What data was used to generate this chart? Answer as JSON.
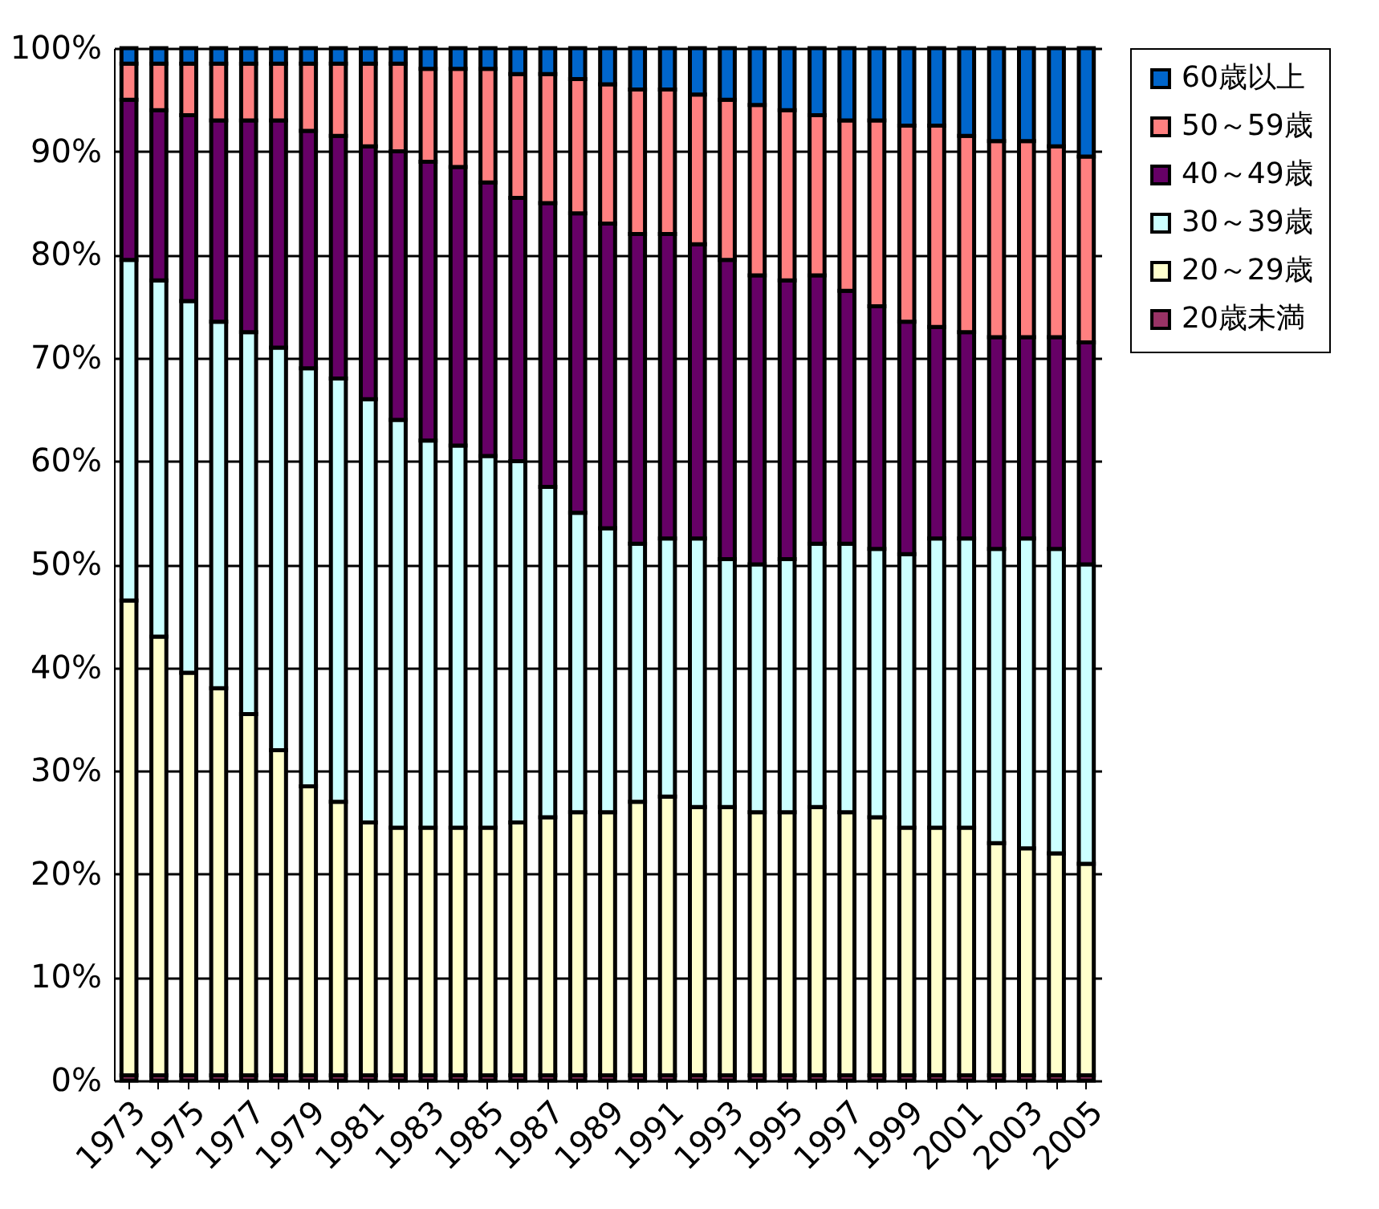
{
  "chart_data": {
    "type": "bar",
    "stacked": true,
    "categories": [
      "1973",
      null,
      "1975",
      null,
      "1977",
      null,
      "1979",
      null,
      "1981",
      null,
      "1983",
      null,
      "1985",
      null,
      "1987",
      null,
      "1989",
      null,
      "1991",
      null,
      "1993",
      null,
      "1995",
      null,
      "1997",
      null,
      "1999",
      null,
      "2001",
      null,
      "2003",
      null,
      "2005"
    ],
    "series": [
      {
        "name": "20歳未満",
        "color": "#993366",
        "values": [
          0.5,
          0.5,
          0.5,
          0.5,
          0.5,
          0.5,
          0.5,
          0.5,
          0.5,
          0.5,
          0.5,
          0.5,
          0.5,
          0.5,
          0.5,
          0.5,
          0.5,
          0.5,
          0.5,
          0.5,
          0.5,
          0.5,
          0.5,
          0.5,
          0.5,
          0.5,
          0.5,
          0.5,
          0.5,
          0.5,
          0.5,
          0.5,
          0.5
        ]
      },
      {
        "name": "20～29歳",
        "color": "#ffffcc",
        "values": [
          46,
          42.5,
          39,
          37.5,
          35,
          31.5,
          28,
          26.5,
          24.5,
          24,
          24,
          24,
          24,
          24.5,
          25,
          25.5,
          25.5,
          26.5,
          27,
          26,
          26,
          25.5,
          25.5,
          26,
          25.5,
          25,
          24,
          24,
          24,
          22.5,
          22,
          21.5,
          20.5
        ]
      },
      {
        "name": "30～39歳",
        "color": "#ccffff",
        "values": [
          33,
          34.5,
          36,
          35.5,
          37,
          39,
          40.5,
          41,
          41,
          39.5,
          37.5,
          37,
          36,
          35,
          32,
          29,
          27.5,
          25,
          25,
          26,
          24,
          24,
          24.5,
          25.5,
          26,
          26,
          26.5,
          28,
          28,
          28.5,
          30,
          29.5,
          29
        ]
      },
      {
        "name": "40～49歳",
        "color": "#660066",
        "values": [
          15.5,
          16.5,
          18,
          19.5,
          20.5,
          22,
          23,
          23.5,
          24.5,
          26,
          27,
          27,
          26.5,
          25.5,
          27.5,
          29,
          29.5,
          30,
          29.5,
          28.5,
          29,
          28,
          27,
          26,
          24.5,
          23.5,
          22.5,
          20.5,
          20,
          20.5,
          19.5,
          20.5,
          21.5
        ]
      },
      {
        "name": "50～59歳",
        "color": "#ff8080",
        "values": [
          3.5,
          4.5,
          5,
          5.5,
          5.5,
          5.5,
          6.5,
          7,
          8,
          8.5,
          9,
          9.5,
          11,
          12,
          12.5,
          13,
          13.5,
          14,
          14,
          14.5,
          15.5,
          16.5,
          16.5,
          15.5,
          16.5,
          18,
          19,
          19.5,
          19,
          19,
          19,
          18.5,
          18
        ]
      },
      {
        "name": "60歳以上",
        "color": "#0066cc",
        "values": [
          1.5,
          1.5,
          1.5,
          1.5,
          1.5,
          1.5,
          1.5,
          1.5,
          1.5,
          1.5,
          2,
          2,
          2,
          2.5,
          2.5,
          3,
          3.5,
          4,
          4,
          4.5,
          5,
          5.5,
          6,
          6.5,
          7,
          7,
          7.5,
          7.5,
          8.5,
          9,
          9,
          9.5,
          10.5
        ]
      }
    ],
    "ylim": [
      0,
      100
    ],
    "yticks": [
      {
        "value": 0,
        "label": "0%"
      },
      {
        "value": 10,
        "label": "10%"
      },
      {
        "value": 20,
        "label": "20%"
      },
      {
        "value": 30,
        "label": "30%"
      },
      {
        "value": 40,
        "label": "40%"
      },
      {
        "value": 50,
        "label": "50%"
      },
      {
        "value": 60,
        "label": "60%"
      },
      {
        "value": 70,
        "label": "70%"
      },
      {
        "value": 80,
        "label": "80%"
      },
      {
        "value": 90,
        "label": "90%"
      },
      {
        "value": 100,
        "label": "100%"
      }
    ],
    "grid": "y",
    "legend": "right"
  }
}
